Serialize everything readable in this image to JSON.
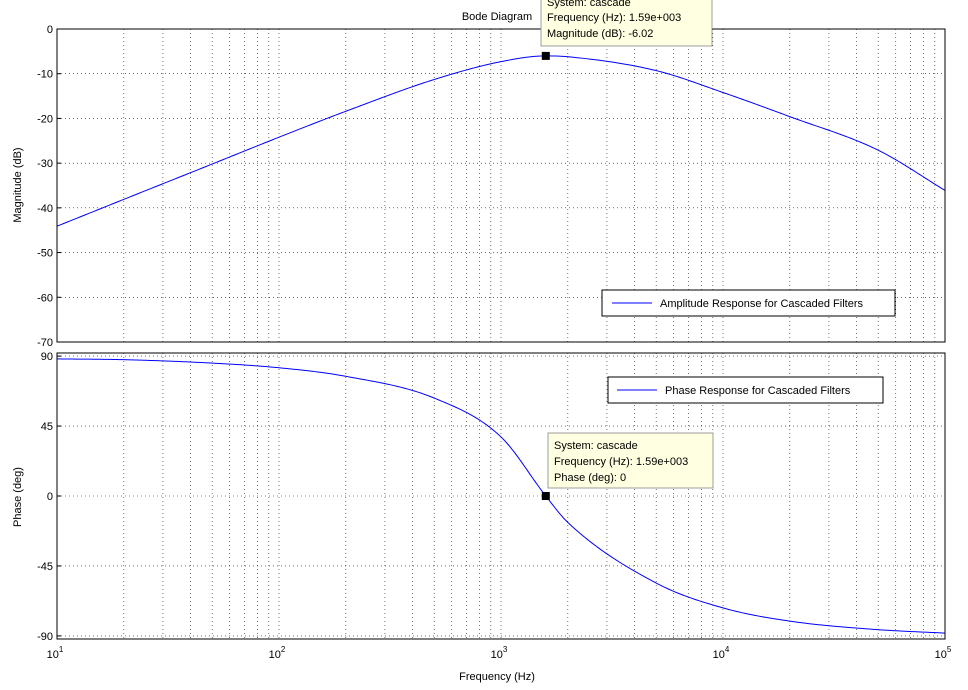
{
  "chart_data": [
    {
      "type": "line",
      "title": "Bode Diagram",
      "xlabel": "Frequency  (Hz)",
      "ylabel": "Magnitude (dB)",
      "xscale": "log",
      "xlim": [
        10,
        100000
      ],
      "ylim": [
        -70,
        0
      ],
      "yticks": [
        0,
        -10,
        -20,
        -30,
        -40,
        -50,
        -60,
        -70
      ],
      "yticklabels": [
        "0",
        "-10",
        "-20",
        "-30",
        "-40",
        "-50",
        "-60",
        "-70"
      ],
      "grid": true,
      "legend": {
        "position": "bottom-right",
        "entries": [
          "Amplitude Response for Cascaded Filters"
        ]
      },
      "series": [
        {
          "name": "Amplitude Response for Cascaded Filters",
          "x": [
            10,
            20,
            50,
            100,
            200,
            500,
            1000,
            1591.5,
            2000,
            5000,
            10000,
            20000,
            50000,
            100000
          ],
          "y": [
            -44.1,
            -38.1,
            -30.2,
            -24.2,
            -18.4,
            -11.3,
            -7.3,
            -6.02,
            -6.2,
            -9.3,
            -14.2,
            -19.6,
            -27.1,
            -36.1
          ]
        }
      ],
      "datatip": {
        "lines": [
          "System: cascade",
          "Frequency (Hz): 1.59e+003",
          "Magnitude (dB): -6.02"
        ],
        "x": 1591.5,
        "y": -6.02
      }
    },
    {
      "type": "line",
      "title": "",
      "xlabel": "Frequency  (Hz)",
      "ylabel": "Phase (deg)",
      "xscale": "log",
      "xlim": [
        10,
        100000
      ],
      "ylim": [
        -92,
        92
      ],
      "yticks": [
        90,
        45,
        0,
        -45,
        -90
      ],
      "yticklabels": [
        "90",
        "45",
        "0",
        "-45",
        "-90"
      ],
      "xticks": [
        10,
        100,
        1000,
        10000,
        100000
      ],
      "xtick_mantissa": [
        "10",
        "10",
        "10",
        "10",
        "10"
      ],
      "xtick_exponent": [
        "1",
        "2",
        "3",
        "4",
        "5"
      ],
      "grid": true,
      "legend": {
        "position": "top-right",
        "entries": [
          "Phase Response for Cascaded Filters"
        ]
      },
      "series": [
        {
          "name": "Phase Response for Cascaded Filters",
          "x": [
            10,
            20,
            50,
            100,
            200,
            500,
            1000,
            1591.5,
            2000,
            5000,
            10000,
            20000,
            50000,
            100000
          ],
          "y": [
            88.2,
            87.7,
            85.5,
            82.5,
            77.0,
            63.0,
            38.0,
            0,
            -17.0,
            -56.0,
            -72.0,
            -80.5,
            -86.0,
            -88.2
          ]
        }
      ],
      "datatip": {
        "lines": [
          "System: cascade",
          "Frequency (Hz): 1.59e+003",
          "Phase (deg): 0"
        ],
        "x": 1591.5,
        "y": 0
      }
    }
  ]
}
